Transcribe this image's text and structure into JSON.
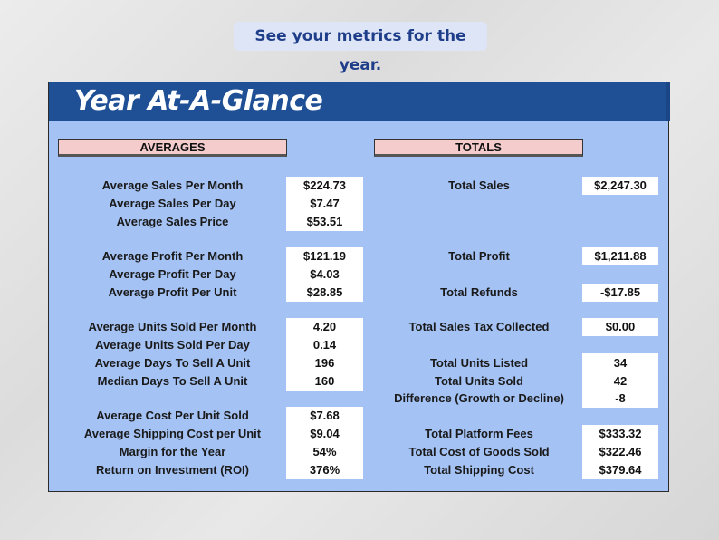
{
  "caption": "See your metrics for the year.",
  "title": "Year At-A-Glance",
  "averages": {
    "header": "AVERAGES",
    "rows": [
      {
        "label": "Average Sales Per Month",
        "value": "$224.73"
      },
      {
        "label": "Average Sales Per Day",
        "value": "$7.47"
      },
      {
        "label": "Average Sales Price",
        "value": "$53.51"
      },
      {
        "label": "Average Profit Per Month",
        "value": "$121.19"
      },
      {
        "label": "Average Profit Per Day",
        "value": "$4.03"
      },
      {
        "label": "Average Profit Per Unit",
        "value": "$28.85"
      },
      {
        "label": "Average Units Sold Per Month",
        "value": "4.20"
      },
      {
        "label": "Average Units Sold Per Day",
        "value": "0.14"
      },
      {
        "label": "Average Days To Sell A Unit",
        "value": "196"
      },
      {
        "label": "Median Days To Sell A Unit",
        "value": "160"
      },
      {
        "label": "Average Cost Per Unit Sold",
        "value": "$7.68"
      },
      {
        "label": "Average Shipping Cost per Unit",
        "value": "$9.04"
      },
      {
        "label": "Margin for the Year",
        "value": "54%"
      },
      {
        "label": "Return on Investment (ROI)",
        "value": "376%"
      }
    ]
  },
  "totals": {
    "header": "TOTALS",
    "rows": [
      {
        "label": "Total Sales",
        "value": "$2,247.30"
      },
      {
        "label": "Total Profit",
        "value": "$1,211.88"
      },
      {
        "label": "Total Refunds",
        "value": "-$17.85"
      },
      {
        "label": "Total Sales Tax Collected",
        "value": "$0.00"
      },
      {
        "label": "Total Units Listed",
        "value": "34"
      },
      {
        "label": "Total Units Sold",
        "value": "42"
      },
      {
        "label": "Difference (Growth or Decline)",
        "value": "-8"
      },
      {
        "label": "Total Platform Fees",
        "value": "$333.32"
      },
      {
        "label": "Total Cost of Goods Sold",
        "value": "$322.46"
      },
      {
        "label": "Total Shipping Cost",
        "value": "$379.64"
      }
    ]
  }
}
